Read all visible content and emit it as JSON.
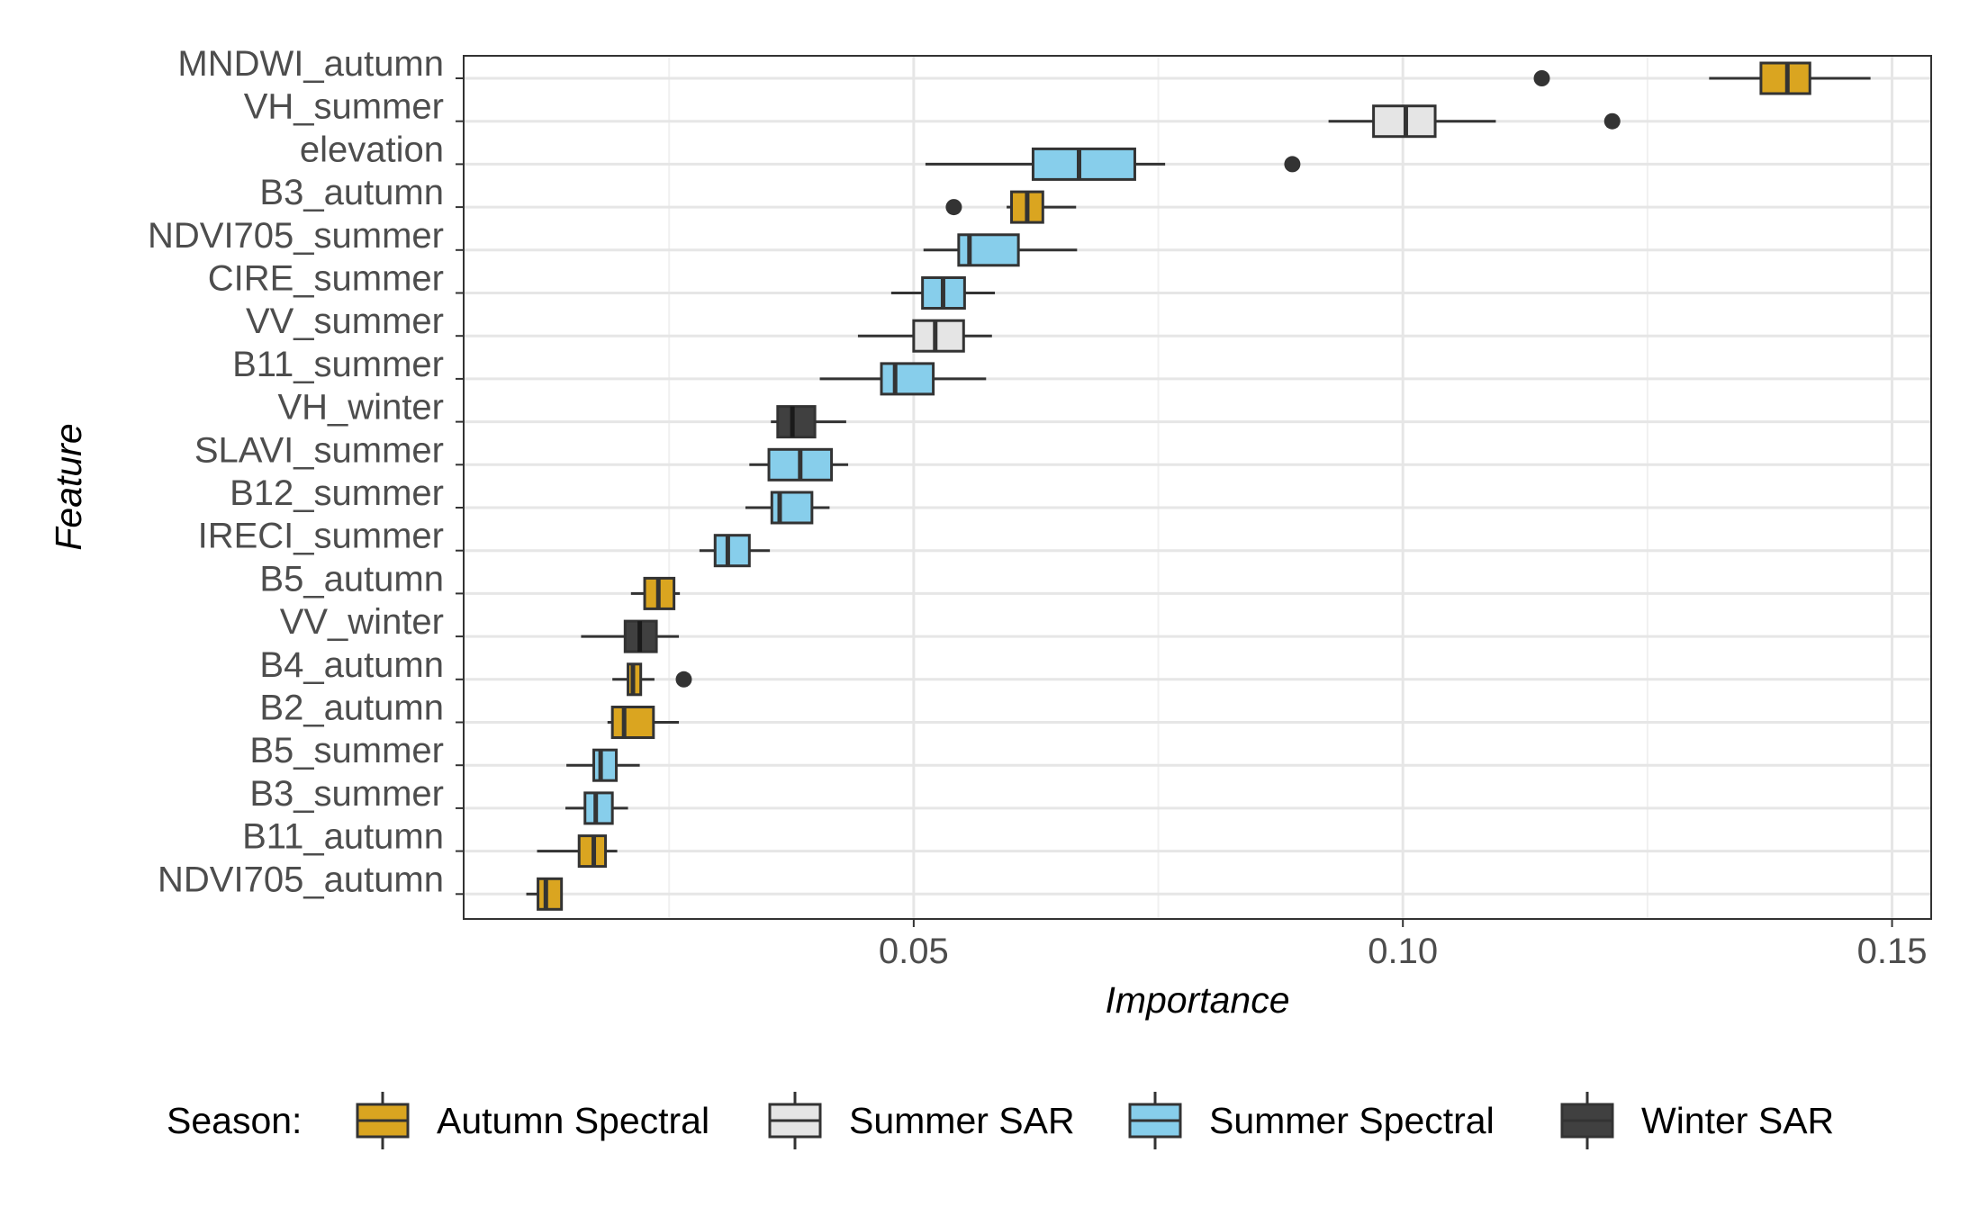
{
  "chart_data": {
    "type": "boxplot",
    "orientation": "horizontal",
    "xlabel": "Importance",
    "ylabel": "Feature",
    "xlim": [
      0.004,
      0.154
    ],
    "x_ticks": [
      {
        "value": 0.05,
        "label": "0.05"
      },
      {
        "value": 0.1,
        "label": "0.10"
      },
      {
        "value": 0.15,
        "label": "0.15"
      }
    ],
    "grid": true,
    "legend": {
      "title": "Season:",
      "position": "bottom",
      "entries": [
        {
          "name": "Autumn Spectral",
          "color": "#DAA520"
        },
        {
          "name": "Summer SAR",
          "color": "#E5E5E5"
        },
        {
          "name": "Summer Spectral",
          "color": "#87CEEB"
        },
        {
          "name": "Winter SAR",
          "color": "#404040"
        }
      ]
    },
    "features": [
      {
        "name": "MNDWI_autumn",
        "season": "Autumn Spectral",
        "min": 0.1313,
        "q1": 0.1366,
        "median": 0.1393,
        "q3": 0.1416,
        "max": 0.1478,
        "outliers": [
          0.1142
        ]
      },
      {
        "name": "VH_summer",
        "season": "Summer SAR",
        "min": 0.0924,
        "q1": 0.097,
        "median": 0.1003,
        "q3": 0.1033,
        "max": 0.1095,
        "outliers": [
          0.1214
        ]
      },
      {
        "name": "elevation",
        "season": "Summer Spectral",
        "min": 0.0512,
        "q1": 0.0622,
        "median": 0.0669,
        "q3": 0.0726,
        "max": 0.0757,
        "outliers": [
          0.0887
        ]
      },
      {
        "name": "B3_autumn",
        "season": "Autumn Spectral",
        "min": 0.0595,
        "q1": 0.06,
        "median": 0.0616,
        "q3": 0.0632,
        "max": 0.0666,
        "outliers": [
          0.0541
        ]
      },
      {
        "name": "NDVI705_summer",
        "season": "Summer Spectral",
        "min": 0.051,
        "q1": 0.0546,
        "median": 0.0557,
        "q3": 0.0607,
        "max": 0.0667,
        "outliers": []
      },
      {
        "name": "CIRE_summer",
        "season": "Summer Spectral",
        "min": 0.0477,
        "q1": 0.0509,
        "median": 0.053,
        "q3": 0.0552,
        "max": 0.0583,
        "outliers": []
      },
      {
        "name": "VV_summer",
        "season": "Summer SAR",
        "min": 0.0443,
        "q1": 0.05,
        "median": 0.0522,
        "q3": 0.0551,
        "max": 0.058,
        "outliers": []
      },
      {
        "name": "B11_summer",
        "season": "Summer Spectral",
        "min": 0.0404,
        "q1": 0.0467,
        "median": 0.0481,
        "q3": 0.052,
        "max": 0.0574,
        "outliers": []
      },
      {
        "name": "VH_winter",
        "season": "Winter SAR",
        "min": 0.0354,
        "q1": 0.0361,
        "median": 0.0376,
        "q3": 0.0399,
        "max": 0.0431,
        "outliers": []
      },
      {
        "name": "SLAVI_summer",
        "season": "Summer Spectral",
        "min": 0.0332,
        "q1": 0.0352,
        "median": 0.0384,
        "q3": 0.0416,
        "max": 0.0433,
        "outliers": []
      },
      {
        "name": "B12_summer",
        "season": "Summer Spectral",
        "min": 0.0328,
        "q1": 0.0355,
        "median": 0.0363,
        "q3": 0.0396,
        "max": 0.0414,
        "outliers": []
      },
      {
        "name": "IRECI_summer",
        "season": "Summer Spectral",
        "min": 0.0281,
        "q1": 0.0297,
        "median": 0.031,
        "q3": 0.0332,
        "max": 0.0353,
        "outliers": []
      },
      {
        "name": "B5_autumn",
        "season": "Autumn Spectral",
        "min": 0.0211,
        "q1": 0.0225,
        "median": 0.0239,
        "q3": 0.0255,
        "max": 0.0261,
        "outliers": []
      },
      {
        "name": "VV_winter",
        "season": "Winter SAR",
        "min": 0.016,
        "q1": 0.0205,
        "median": 0.022,
        "q3": 0.0237,
        "max": 0.026,
        "outliers": []
      },
      {
        "name": "B4_autumn",
        "season": "Autumn Spectral",
        "min": 0.0192,
        "q1": 0.0208,
        "median": 0.0213,
        "q3": 0.0221,
        "max": 0.0235,
        "outliers": [
          0.0265
        ]
      },
      {
        "name": "B2_autumn",
        "season": "Autumn Spectral",
        "min": 0.0187,
        "q1": 0.0192,
        "median": 0.0204,
        "q3": 0.0234,
        "max": 0.026,
        "outliers": []
      },
      {
        "name": "B5_summer",
        "season": "Summer Spectral",
        "min": 0.0145,
        "q1": 0.0173,
        "median": 0.018,
        "q3": 0.0196,
        "max": 0.022,
        "outliers": []
      },
      {
        "name": "B3_summer",
        "season": "Summer Spectral",
        "min": 0.0144,
        "q1": 0.0164,
        "median": 0.0175,
        "q3": 0.0192,
        "max": 0.0208,
        "outliers": []
      },
      {
        "name": "B11_autumn",
        "season": "Autumn Spectral",
        "min": 0.0115,
        "q1": 0.0158,
        "median": 0.0173,
        "q3": 0.0185,
        "max": 0.0197,
        "outliers": []
      },
      {
        "name": "NDVI705_autumn",
        "season": "Autumn Spectral",
        "min": 0.0104,
        "q1": 0.0116,
        "median": 0.0124,
        "q3": 0.014,
        "max": 0.0141,
        "outliers": []
      }
    ]
  }
}
